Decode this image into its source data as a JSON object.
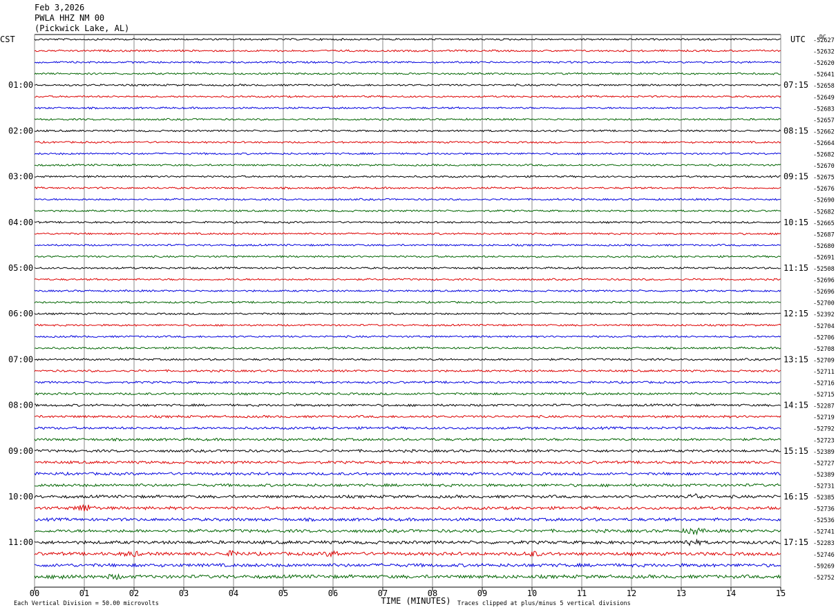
{
  "header": {
    "date": "Feb 3,2026",
    "station": "PWLA HHZ NM 00",
    "location": "(Pickwick Lake, AL)"
  },
  "colors": {
    "trace_cycle": [
      "#000000",
      "#dd0000",
      "#0000dd",
      "#006400"
    ],
    "grid": "#888888"
  },
  "chart_data": {
    "type": "line",
    "subtype": "helicorder",
    "left_timezone": "CST",
    "right_timezone": "UTC",
    "corner_label": "DC",
    "xlabel": "TIME (MINUTES)",
    "x_ticks": [
      "00",
      "01",
      "02",
      "03",
      "04",
      "05",
      "06",
      "07",
      "08",
      "09",
      "10",
      "11",
      "12",
      "13",
      "14",
      "15"
    ],
    "xlim": [
      0,
      15
    ],
    "minutes_per_line": 15,
    "left_hour_labels": [
      "01:00",
      "02:00",
      "03:00",
      "04:00",
      "05:00",
      "06:00",
      "07:00",
      "08:00",
      "09:00",
      "10:00",
      "11:00"
    ],
    "right_hour_labels": [
      "07:15",
      "08:15",
      "09:15",
      "10:15",
      "11:15",
      "12:15",
      "13:15",
      "14:15",
      "15:15",
      "16:15",
      "17:15"
    ],
    "line_offsets": [
      "-52627",
      "-52632",
      "-52620",
      "-52641",
      "-52658",
      "-52649",
      "-52683",
      "-52657",
      "-52662",
      "-52664",
      "-52682",
      "-52670",
      "-52675",
      "-52676",
      "-52690",
      "-52682",
      "-52665",
      "-52687",
      "-52680",
      "-52691",
      "-52508",
      "-52696",
      "-52696",
      "-52700",
      "-52392",
      "-52704",
      "-52706",
      "-52708",
      "-52709",
      "-52711",
      "-52716",
      "-52715",
      "-52287",
      "-52719",
      "-52792",
      "-52723",
      "-52389",
      "-52727",
      "-52389",
      "-52731",
      "-52385",
      "-52736",
      "-52536",
      "-52741",
      "-52283",
      "-52746",
      "-59269",
      "-52752"
    ],
    "events": [
      {
        "line": 41,
        "t": 1.0,
        "amp": 5
      },
      {
        "line": 44,
        "t": 13.2,
        "amp": 4
      },
      {
        "line": 43,
        "t": 13.25,
        "amp": 4
      },
      {
        "line": 40,
        "t": 13.3,
        "amp": 3
      },
      {
        "line": 45,
        "t": 1.95,
        "amp": 3
      },
      {
        "line": 45,
        "t": 4.0,
        "amp": 3
      },
      {
        "line": 45,
        "t": 6.0,
        "amp": 3
      },
      {
        "line": 45,
        "t": 10.0,
        "amp": 3
      },
      {
        "line": 47,
        "t": 0.6,
        "amp": 3
      },
      {
        "line": 47,
        "t": 1.6,
        "amp": 2.5
      }
    ],
    "footer_left": "Each Vertical Division =   50.00 microvolts",
    "footer_right": "Traces clipped at plus/minus 5 vertical divisions"
  }
}
